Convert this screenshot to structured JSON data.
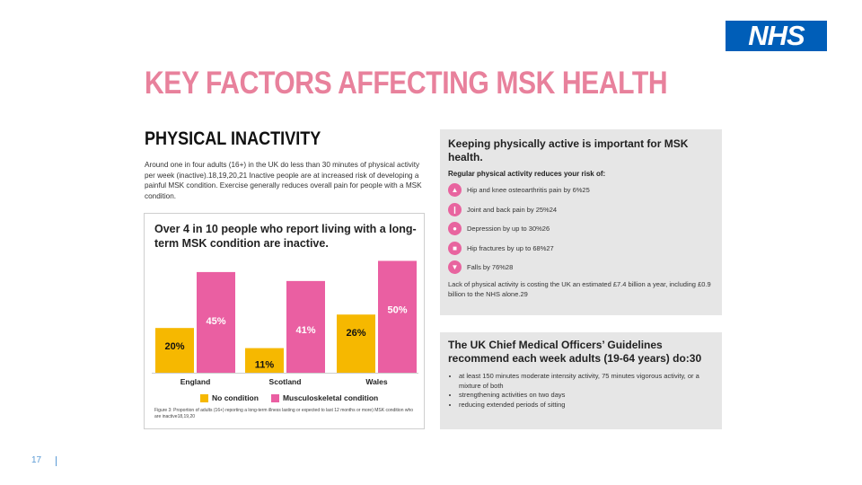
{
  "logo": {
    "text": "NHS",
    "color": "#005eb8"
  },
  "title": "KEY FACTORS AFFECTING MSK HEALTH",
  "section": {
    "heading": "PHYSICAL INACTIVITY",
    "intro": "Around one in four adults (16+) in the UK do less than 30 minutes of physical activity per week (inactive).18,19,20,21 Inactive people are at increased risk of developing a painful MSK condition. Exercise generally reduces overall pain for people with a MSK condition."
  },
  "chart_data": {
    "type": "bar",
    "title": "Over 4 in 10 people who report living with a long-term MSK condition are inactive.",
    "categories": [
      "England",
      "Scotland",
      "Wales"
    ],
    "series": [
      {
        "name": "No condition",
        "values": [
          20,
          11,
          26
        ],
        "labels": [
          "20%",
          "11%",
          "26%"
        ],
        "color": "#f6b800"
      },
      {
        "name": "Musculoskeletal condition",
        "values": [
          45,
          41,
          50
        ],
        "labels": [
          "45%",
          "41%",
          "50%"
        ],
        "color": "#ea5fa2"
      }
    ],
    "ylim": [
      0,
      55
    ],
    "legend": "bottom",
    "caption": "Figure 3: Proportion of adults (16+) reporting a long-term illness lasting or expected to last 12 months or more) MSK condition who are inactive18,19,20"
  },
  "benefits": {
    "heading": "Keeping physically active is important for MSK health.",
    "subheading": "Regular physical activity reduces your risk of:",
    "items": [
      {
        "icon": "hip-knee-icon",
        "text": "Hip and knee osteoarthritis pain by 6%25"
      },
      {
        "icon": "joint-back-icon",
        "text": "Joint and back pain by 25%24"
      },
      {
        "icon": "depression-icon",
        "text": "Depression by up to 30%26"
      },
      {
        "icon": "hip-fracture-icon",
        "text": "Hip fractures by up to 68%27"
      },
      {
        "icon": "falls-icon",
        "text": "Falls by 76%28"
      }
    ],
    "footnote": "Lack of physical activity is costing the UK an estimated £7.4 billion a year, including £0.9 billion to the NHS alone.29"
  },
  "guidelines": {
    "heading": "The UK Chief Medical Officers’ Guidelines recommend each week adults (19-64 years) do:30",
    "items": [
      "at least 150 minutes moderate intensity activity, 75 minutes vigorous activity, or a mixture of both",
      "strengthening activities on two days",
      "reducing extended periods of sitting"
    ]
  },
  "footer": {
    "page_number": "17"
  }
}
